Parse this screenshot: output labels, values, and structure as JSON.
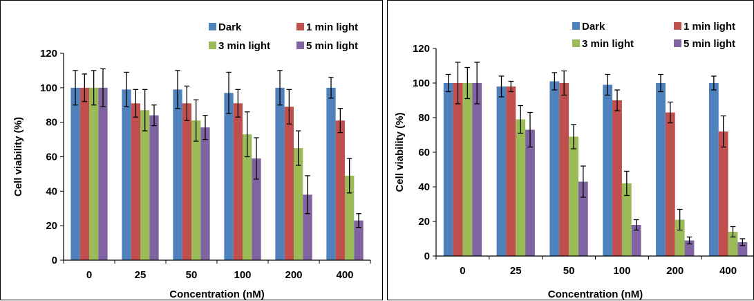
{
  "chart_data": [
    {
      "type": "bar",
      "categories": [
        "0",
        "25",
        "50",
        "100",
        "200",
        "400"
      ],
      "series": [
        {
          "name": "Dark",
          "color": "#4F81BD",
          "values": [
            100,
            99,
            99,
            97,
            100,
            100
          ],
          "errors": [
            10,
            10,
            11,
            12,
            10,
            6
          ]
        },
        {
          "name": "1 min light",
          "color": "#C0504D",
          "values": [
            100,
            91,
            91,
            91,
            89,
            81
          ],
          "errors": [
            8,
            8,
            10,
            8,
            10,
            7
          ]
        },
        {
          "name": "3 min light",
          "color": "#9BBB59",
          "values": [
            100,
            87,
            81,
            73,
            65,
            49
          ],
          "errors": [
            10,
            12,
            12,
            13,
            10,
            10
          ]
        },
        {
          "name": "5 min light",
          "color": "#8064A2",
          "values": [
            100,
            84,
            77,
            59,
            38,
            23
          ],
          "errors": [
            11,
            6,
            7,
            12,
            11,
            4
          ]
        }
      ],
      "xlabel": "Concentration (nM)",
      "ylabel": "Cell viability (%)",
      "ylim": [
        0,
        120
      ],
      "yticks": [
        "0",
        "20",
        "40",
        "60",
        "80",
        "100",
        "120"
      ],
      "legend_position": "top-right",
      "grid": false
    },
    {
      "type": "bar",
      "categories": [
        "0",
        "25",
        "50",
        "100",
        "200",
        "400"
      ],
      "series": [
        {
          "name": "Dark",
          "color": "#4F81BD",
          "values": [
            100,
            98,
            101,
            99,
            100,
            100
          ],
          "errors": [
            5,
            6,
            5,
            6,
            5,
            4
          ]
        },
        {
          "name": "1 min light",
          "color": "#C0504D",
          "values": [
            100,
            98,
            100,
            90,
            83,
            72
          ],
          "errors": [
            12,
            3,
            7,
            6,
            6,
            9
          ]
        },
        {
          "name": "3 min light",
          "color": "#9BBB59",
          "values": [
            100,
            79,
            69,
            42,
            21,
            14
          ],
          "errors": [
            9,
            8,
            7,
            7,
            6,
            3
          ]
        },
        {
          "name": "5 min light",
          "color": "#8064A2",
          "values": [
            100,
            73,
            43,
            18,
            9,
            8
          ],
          "errors": [
            12,
            10,
            9,
            3,
            2,
            2
          ]
        }
      ],
      "xlabel": "Concentration (nM)",
      "ylabel": "Cell viability (%)",
      "ylim": [
        0,
        120
      ],
      "yticks": [
        "0",
        "20",
        "40",
        "60",
        "80",
        "100",
        "120"
      ],
      "legend_position": "top-right",
      "grid": false
    }
  ]
}
